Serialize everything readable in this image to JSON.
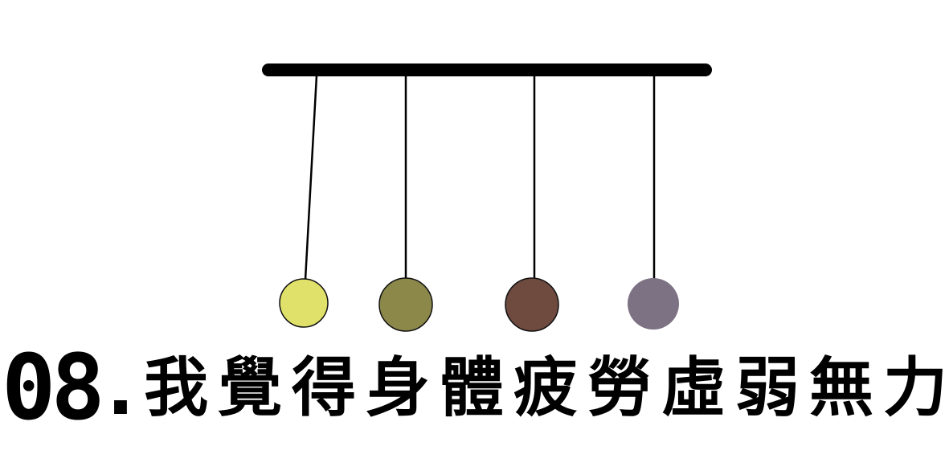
{
  "caption": {
    "number": "08",
    "separator": ".",
    "text": "我覺得身體疲勞虛弱無力"
  },
  "pendulum": {
    "bar_color": "#000000",
    "string_color": "#000000",
    "balls": [
      {
        "name": "yellow",
        "color": "#e0e16a"
      },
      {
        "name": "olive",
        "color": "#8b8849"
      },
      {
        "name": "brown",
        "color": "#6e4a3f"
      },
      {
        "name": "mauve",
        "color": "#7d7283"
      }
    ]
  }
}
